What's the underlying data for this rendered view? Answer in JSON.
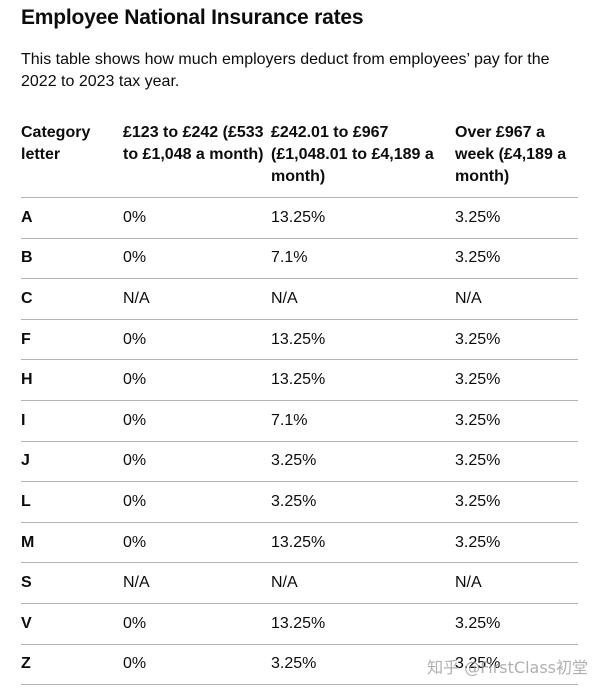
{
  "page": {
    "title": "Employee National Insurance rates",
    "intro": "This table shows how much employers deduct from employees’ pay for the 2022 to 2023 tax year."
  },
  "table": {
    "headers": [
      "Category letter",
      "£123 to £242 (£533 to £1,048 a month)",
      "£242.01 to £967 (£1,048.01 to £4,189 a month)",
      "Over £967 a week (£4,189 a month)"
    ],
    "rows": [
      [
        "A",
        "0%",
        "13.25%",
        "3.25%"
      ],
      [
        "B",
        "0%",
        "7.1%",
        "3.25%"
      ],
      [
        "C",
        "N/A",
        "N/A",
        "N/A"
      ],
      [
        "F",
        "0%",
        "13.25%",
        "3.25%"
      ],
      [
        "H",
        "0%",
        "13.25%",
        "3.25%"
      ],
      [
        "I",
        "0%",
        "7.1%",
        "3.25%"
      ],
      [
        "J",
        "0%",
        "3.25%",
        "3.25%"
      ],
      [
        "L",
        "0%",
        "3.25%",
        "3.25%"
      ],
      [
        "M",
        "0%",
        "13.25%",
        "3.25%"
      ],
      [
        "S",
        "N/A",
        "N/A",
        "N/A"
      ],
      [
        "V",
        "0%",
        "13.25%",
        "3.25%"
      ],
      [
        "Z",
        "0%",
        "3.25%",
        "3.25%"
      ]
    ]
  },
  "watermark": "知乎 @FirstClass初堂"
}
